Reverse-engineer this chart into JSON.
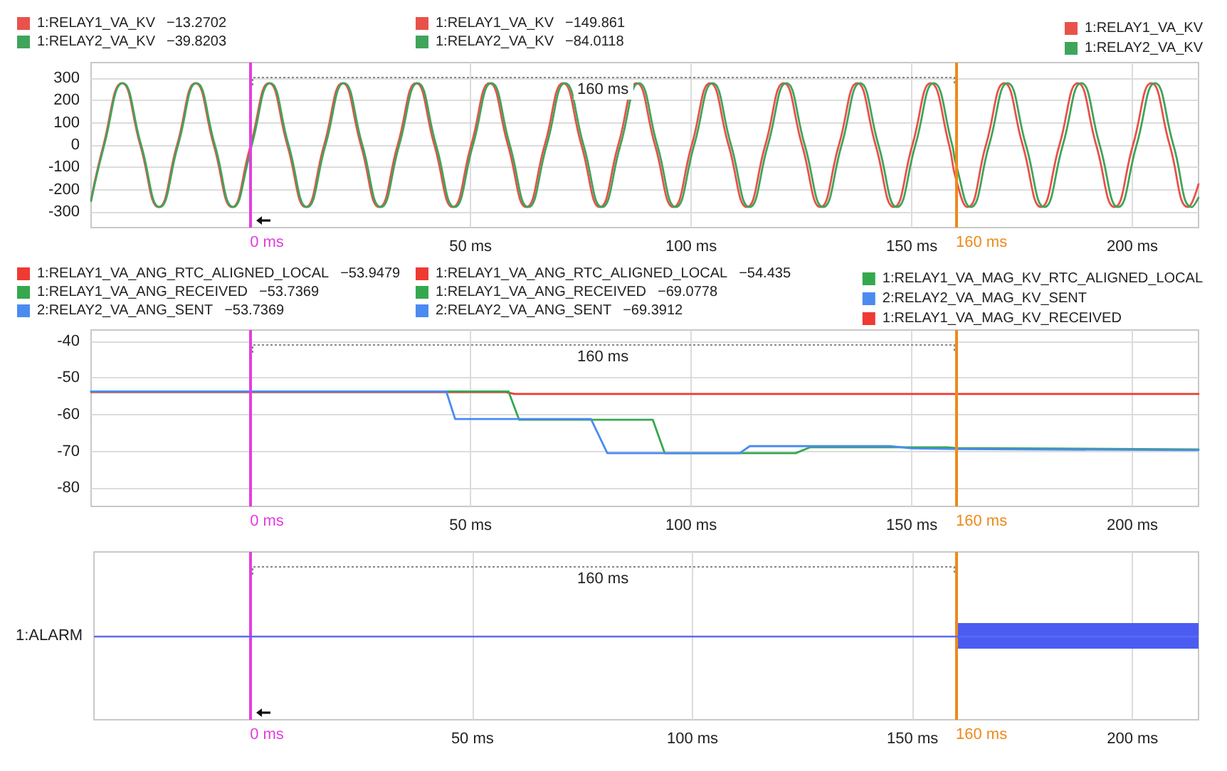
{
  "chart_data": [
    {
      "type": "line",
      "xlim": [
        -36,
        215
      ],
      "xticks": [
        {
          "value": 50,
          "label": "50 ms"
        },
        {
          "value": 100,
          "label": "100 ms"
        },
        {
          "value": 150,
          "label": "150 ms"
        },
        {
          "value": 200,
          "label": "200 ms"
        }
      ],
      "ylim": [
        -370,
        370
      ],
      "yticks": [
        -300,
        -200,
        -100,
        0,
        100,
        200,
        300
      ],
      "grid": true,
      "legend": "top",
      "ref_lines": [
        {
          "axis": "x",
          "value": 0,
          "label": "0 ms",
          "color": "#e23ee0"
        },
        {
          "axis": "x",
          "value": 160,
          "label": "160 ms",
          "color": "#ee8a1a"
        }
      ],
      "annotations": [
        "160 ms",
        "−13.2702",
        "−39.8203",
        "−149.861",
        "−84.0118"
      ],
      "series": [
        {
          "name": "1:RELAY1_VA_KV",
          "color": "#e8524a",
          "x": [
            -36,
            -33.19,
            -29.02,
            -24.85,
            -20.69,
            -16.52,
            -12.35,
            -8.19,
            -4.02,
            0,
            0.15,
            4.31,
            8.48,
            12.65,
            16.81,
            20.98,
            25.15,
            29.31,
            33.48,
            37.65,
            41.81,
            45.98,
            50.15,
            54.31,
            58.48,
            62.64,
            66.81,
            70.98,
            75.14,
            79.31,
            83.48,
            87.64,
            91.81,
            95.98,
            100.14,
            104.31,
            108.48,
            112.64,
            116.81,
            120.98,
            125.14,
            129.31,
            133.48,
            137.64,
            141.81,
            145.97,
            150.14,
            154.31,
            158.47,
            160,
            162.64,
            166.81,
            170.97,
            175.14,
            179.31,
            183.47,
            187.64,
            191.81,
            195.97,
            200.14,
            204.31,
            208.47,
            212.64,
            215
          ],
          "values": [
            -243,
            0,
            278,
            0,
            -278,
            0,
            278,
            0,
            -278,
            -13,
            0,
            278,
            0,
            -278,
            0,
            278,
            0,
            -278,
            0,
            278,
            0,
            -278,
            0,
            278,
            0,
            -278,
            0,
            278,
            0,
            -278,
            0,
            278,
            0,
            -278,
            0,
            278,
            0,
            -278,
            0,
            278,
            0,
            -278,
            0,
            278,
            0,
            -278,
            0,
            278,
            0,
            -150,
            -278,
            0,
            278,
            0,
            -278,
            0,
            278,
            0,
            -278,
            0,
            278,
            0,
            -278,
            -175
          ]
        },
        {
          "name": "1:RELAY2_VA_KV",
          "color": "#3fa55b",
          "x": [
            -36,
            -33.02,
            -28.84,
            -24.66,
            -20.48,
            -16.3,
            -12.13,
            -7.95,
            -3.77,
            0,
            0.41,
            4.59,
            8.76,
            12.94,
            17.12,
            21.3,
            25.48,
            29.65,
            33.83,
            38.01,
            42.19,
            46.37,
            50.54,
            54.72,
            58.9,
            63.08,
            67.26,
            71.43,
            75.61,
            79.79,
            83.97,
            88.15,
            92.32,
            96.5,
            100.68,
            104.86,
            109.04,
            113.21,
            117.39,
            121.57,
            125.75,
            129.93,
            134.1,
            138.28,
            142.46,
            146.64,
            150.82,
            154.99,
            159.17,
            160,
            163.35,
            167.53,
            171.71,
            175.88,
            180.06,
            184.24,
            188.42,
            192.6,
            196.77,
            200.95,
            205.13,
            209.31,
            213.49,
            215
          ],
          "values": [
            -251,
            0,
            278,
            0,
            -278,
            0,
            278,
            0,
            -278,
            -40,
            0,
            278,
            0,
            -278,
            0,
            278,
            0,
            -278,
            0,
            278,
            0,
            -278,
            0,
            278,
            0,
            -278,
            0,
            278,
            0,
            -278,
            0,
            278,
            0,
            -278,
            0,
            278,
            0,
            -278,
            0,
            278,
            0,
            -278,
            0,
            278,
            0,
            -278,
            0,
            278,
            0,
            -84,
            -278,
            0,
            278,
            0,
            -278,
            0,
            278,
            0,
            -278,
            0,
            278,
            0,
            -278,
            -236
          ]
        }
      ]
    },
    {
      "type": "line",
      "xlim": [
        -36,
        215
      ],
      "xticks": [
        {
          "value": 50,
          "label": "50 ms"
        },
        {
          "value": 100,
          "label": "100 ms"
        },
        {
          "value": 150,
          "label": "150 ms"
        },
        {
          "value": 200,
          "label": "200 ms"
        }
      ],
      "ylim": [
        -85,
        -37
      ],
      "yticks": [
        -80,
        -70,
        -60,
        -50,
        -40
      ],
      "grid": true,
      "legend": "top",
      "ref_lines": [
        {
          "axis": "x",
          "value": 0,
          "label": "0 ms",
          "color": "#e23ee0"
        },
        {
          "axis": "x",
          "value": 160,
          "label": "160 ms",
          "color": "#ee8a1a"
        }
      ],
      "annotations": [
        "160 ms",
        "−53.9479",
        "−53.7369",
        "−53.7369",
        "−54.435",
        "−69.0778",
        "−69.3912"
      ],
      "series": [
        {
          "name": "1:RELAY1_VA_ANG_RTC_ALIGNED_LOCAL",
          "color": "#ee3a33",
          "x": [
            -36,
            0,
            58,
            60,
            160,
            215
          ],
          "values": [
            -53.9,
            -53.9,
            -53.9,
            -54.4,
            -54.4,
            -54.4
          ]
        },
        {
          "name": "1:RELAY1_VA_ANG_RECEIVED",
          "color": "#35a84f",
          "x": [
            -36,
            58.6,
            61,
            91.3,
            94,
            123.7,
            127,
            158,
            160,
            215
          ],
          "values": [
            -53.7,
            -53.7,
            -61.4,
            -61.4,
            -70.5,
            -70.5,
            -68.9,
            -68.9,
            -69.1,
            -69.5
          ]
        },
        {
          "name": "2:RELAY2_VA_ANG_SENT",
          "color": "#4b8bf0",
          "x": [
            -36,
            0,
            44.5,
            46.5,
            77.3,
            81,
            111,
            113.3,
            145,
            150,
            160,
            215
          ],
          "values": [
            -53.7,
            -53.7,
            -53.7,
            -61.2,
            -61.2,
            -70.5,
            -70.5,
            -68.6,
            -68.6,
            -69.2,
            -69.4,
            -69.7
          ]
        },
        {
          "name": "1:RELAY1_VA_MAG_KV_RTC_ALIGNED_LOCAL",
          "color": "#35a84f"
        },
        {
          "name": "2:RELAY2_VA_MAG_KV_SENT",
          "color": "#4b8bf0"
        },
        {
          "name": "1:RELAY1_VA_MAG_KV_RECEIVED",
          "color": "#ee3a33"
        }
      ]
    },
    {
      "type": "bar",
      "orientation": "horizontal",
      "categories": [
        "1:ALARM"
      ],
      "base": [
        160
      ],
      "values": [
        55
      ],
      "color": "#4b5cf2",
      "xlim": [
        -36,
        215
      ],
      "xticks": [
        {
          "value": 50,
          "label": "50 ms"
        },
        {
          "value": 100,
          "label": "100 ms"
        },
        {
          "value": 150,
          "label": "150 ms"
        },
        {
          "value": 200,
          "label": "200 ms"
        }
      ],
      "grid": "x",
      "ref_lines": [
        {
          "axis": "x",
          "value": 0,
          "label": "0 ms",
          "color": "#e23ee0"
        },
        {
          "axis": "x",
          "value": 160,
          "label": "160 ms",
          "color": "#ee8a1a"
        },
        {
          "axis": "y",
          "value": "1:ALARM",
          "color": "#5a6af2"
        }
      ],
      "annotations": [
        "160 ms"
      ]
    }
  ]
}
